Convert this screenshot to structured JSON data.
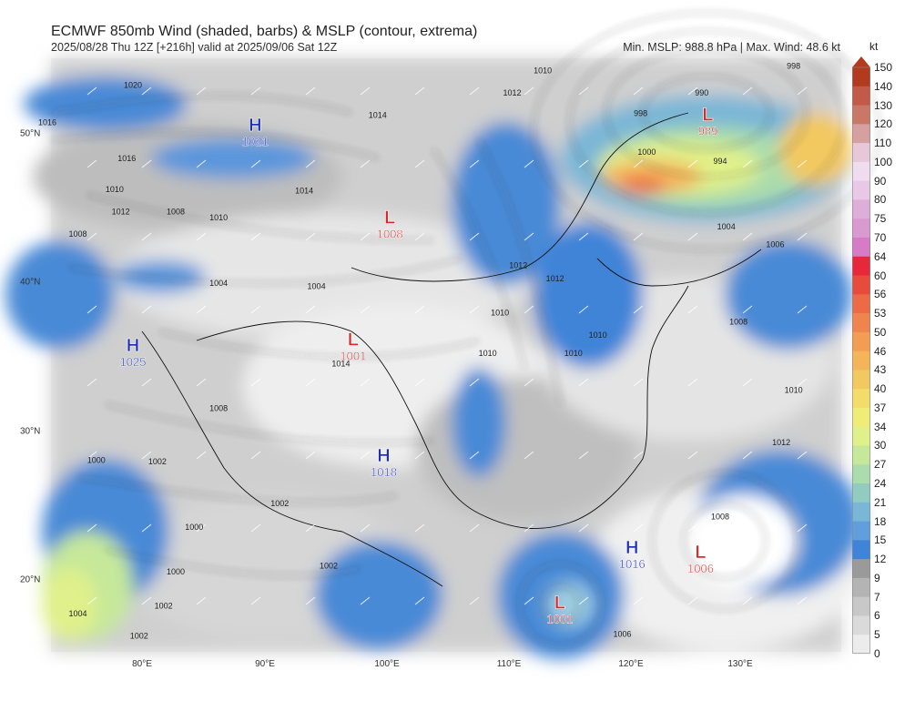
{
  "header": {
    "title": "ECMWF 850mb Wind (shaded, barbs) & MSLP (contour, extrema)",
    "subtitle": "2025/08/28 Thu 12Z [+216h] valid at 2025/09/06 Sat 12Z",
    "info": "Min. MSLP: 988.8 hPa | Max. Wind: 48.6 kt"
  },
  "axes": {
    "latitudes": [
      "50°N",
      "40°N",
      "30°N",
      "20°N"
    ],
    "longitudes": [
      "80°E",
      "90°E",
      "100°E",
      "110°E",
      "120°E",
      "130°E"
    ]
  },
  "colorbar": {
    "unit": "kt",
    "levels": [
      "150",
      "140",
      "130",
      "120",
      "110",
      "100",
      "90",
      "80",
      "75",
      "70",
      "64",
      "60",
      "56",
      "53",
      "50",
      "46",
      "43",
      "40",
      "37",
      "34",
      "30",
      "27",
      "24",
      "21",
      "18",
      "15",
      "12",
      "9",
      "7",
      "6",
      "5",
      "0"
    ],
    "colors": [
      "#b23a1f",
      "#c25a4a",
      "#c97868",
      "#d6a0a0",
      "#e6c8d8",
      "#efdcef",
      "#e8c8e6",
      "#dcaed8",
      "#d89ad0",
      "#d67cc6",
      "#e8283a",
      "#e84a3c",
      "#ec6a46",
      "#f0844e",
      "#f29c54",
      "#f4b45a",
      "#f2c860",
      "#f4dc6a",
      "#f0ec78",
      "#e0f08a",
      "#c6e89a",
      "#aadcac",
      "#92ccc0",
      "#7ab6d6",
      "#609ede",
      "#3f84d8",
      "#9a9a9a",
      "#b4b4b4",
      "#c8c8c8",
      "#dadada",
      "#ececec",
      "#ffffff"
    ]
  },
  "pressure_centers": [
    {
      "type": "H",
      "value": "1021",
      "lon": 89.5,
      "lat": 50.6,
      "color": "#1f2fb5"
    },
    {
      "type": "L",
      "value": "1008",
      "lon": 100.5,
      "lat": 44.4,
      "color": "#d42a2a"
    },
    {
      "type": "L",
      "value": "1001",
      "lon": 97.5,
      "lat": 36.2,
      "color": "#d42a2a"
    },
    {
      "type": "H",
      "value": "1025",
      "lon": 79.5,
      "lat": 35.8,
      "color": "#1f2fb5"
    },
    {
      "type": "H",
      "value": "1018",
      "lon": 100.0,
      "lat": 28.4,
      "color": "#1f2fb5"
    },
    {
      "type": "L",
      "value": "989",
      "lon": 126.5,
      "lat": 51.3,
      "color": "#d42a2a"
    },
    {
      "type": "H",
      "value": "1016",
      "lon": 120.3,
      "lat": 22.2,
      "color": "#1f2fb5"
    },
    {
      "type": "L",
      "value": "1006",
      "lon": 125.9,
      "lat": 21.9,
      "color": "#d42a2a"
    },
    {
      "type": "L",
      "value": "1001",
      "lon": 114.4,
      "lat": 18.5,
      "color": "#d42a2a"
    }
  ],
  "isobar_labels": [
    {
      "text": "1020",
      "lon": 79.5,
      "lat": 53.5
    },
    {
      "text": "1016",
      "lon": 72.5,
      "lat": 51.0
    },
    {
      "text": "1016",
      "lon": 79.0,
      "lat": 48.6
    },
    {
      "text": "1010",
      "lon": 78.0,
      "lat": 46.5
    },
    {
      "text": "1012",
      "lon": 78.5,
      "lat": 45.0
    },
    {
      "text": "1008",
      "lon": 83.0,
      "lat": 45.0
    },
    {
      "text": "1010",
      "lon": 86.5,
      "lat": 44.6
    },
    {
      "text": "1008",
      "lon": 75.0,
      "lat": 43.5
    },
    {
      "text": "1014",
      "lon": 99.5,
      "lat": 51.5
    },
    {
      "text": "1010",
      "lon": 113.0,
      "lat": 54.5
    },
    {
      "text": "1012",
      "lon": 110.5,
      "lat": 53.0
    },
    {
      "text": "1012",
      "lon": 111.0,
      "lat": 41.4
    },
    {
      "text": "1004",
      "lon": 86.5,
      "lat": 40.2
    },
    {
      "text": "1004",
      "lon": 94.5,
      "lat": 40.0
    },
    {
      "text": "1014",
      "lon": 93.5,
      "lat": 46.4
    },
    {
      "text": "1010",
      "lon": 109.5,
      "lat": 38.2
    },
    {
      "text": "1012",
      "lon": 114.0,
      "lat": 40.5
    },
    {
      "text": "1014",
      "lon": 96.5,
      "lat": 34.8
    },
    {
      "text": "1008",
      "lon": 86.5,
      "lat": 31.8
    },
    {
      "text": "1010",
      "lon": 115.5,
      "lat": 35.5
    },
    {
      "text": "1000",
      "lon": 76.5,
      "lat": 28.3
    },
    {
      "text": "1002",
      "lon": 81.5,
      "lat": 28.2
    },
    {
      "text": "1000",
      "lon": 84.5,
      "lat": 23.8
    },
    {
      "text": "1002",
      "lon": 91.5,
      "lat": 25.4
    },
    {
      "text": "1002",
      "lon": 95.5,
      "lat": 21.2
    },
    {
      "text": "1000",
      "lon": 83.0,
      "lat": 20.8
    },
    {
      "text": "1002",
      "lon": 82.0,
      "lat": 18.5
    },
    {
      "text": "1004",
      "lon": 75.0,
      "lat": 18.0
    },
    {
      "text": "1002",
      "lon": 80.0,
      "lat": 16.5
    },
    {
      "text": "1004",
      "lon": 128.0,
      "lat": 44.0
    },
    {
      "text": "1006",
      "lon": 132.0,
      "lat": 42.8
    },
    {
      "text": "1008",
      "lon": 129.0,
      "lat": 37.6
    },
    {
      "text": "1010",
      "lon": 133.5,
      "lat": 33.0
    },
    {
      "text": "1012",
      "lon": 132.5,
      "lat": 29.5
    },
    {
      "text": "1008",
      "lon": 127.5,
      "lat": 24.5
    },
    {
      "text": "1000",
      "lon": 121.5,
      "lat": 49.0
    },
    {
      "text": "994",
      "lon": 127.5,
      "lat": 48.4
    },
    {
      "text": "998",
      "lon": 121.0,
      "lat": 51.6
    },
    {
      "text": "990",
      "lon": 126.0,
      "lat": 53.0
    },
    {
      "text": "998",
      "lon": 133.5,
      "lat": 54.8
    },
    {
      "text": "1010",
      "lon": 117.5,
      "lat": 36.7
    },
    {
      "text": "1006",
      "lon": 119.5,
      "lat": 16.6
    },
    {
      "text": "1010",
      "lon": 108.5,
      "lat": 35.5
    }
  ]
}
